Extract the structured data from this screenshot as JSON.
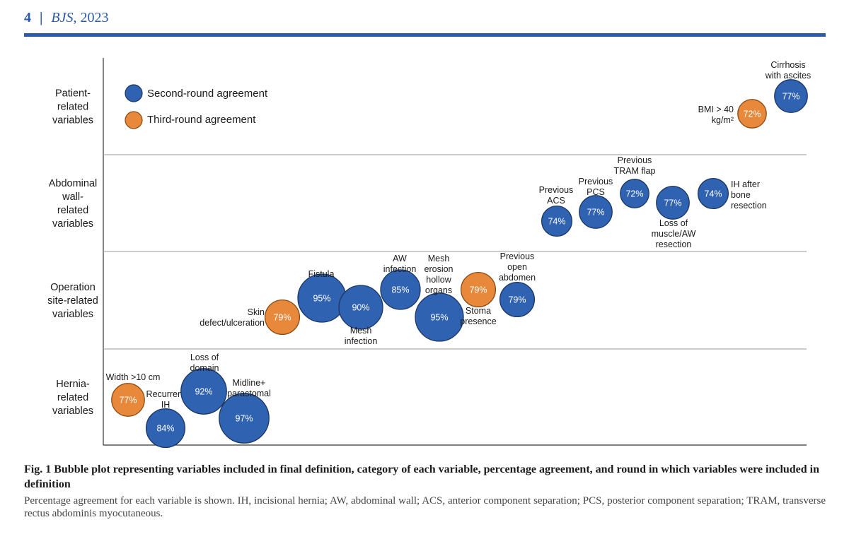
{
  "header": {
    "page": "4",
    "separator": "|",
    "journal": "BJS",
    "year": ", 2023"
  },
  "colors": {
    "second": "#2f62b0",
    "third": "#e8883a",
    "rule": "#2a5aa8"
  },
  "legend": {
    "second_label": "Second-round agreement",
    "third_label": "Third-round agreement"
  },
  "rows": [
    {
      "label": [
        "Patient-",
        "related",
        "variables"
      ]
    },
    {
      "label": [
        "Abdominal",
        "wall-",
        "related",
        "variables"
      ]
    },
    {
      "label": [
        "Operation",
        "site-related",
        "variables"
      ]
    },
    {
      "label": [
        "Hernia-",
        "related",
        "variables"
      ]
    }
  ],
  "chart_data": {
    "type": "bubble",
    "categories": [
      "Patient-related variables",
      "Abdominal wall-related variables",
      "Operation site-related variables",
      "Hernia-related variables"
    ],
    "series": [
      {
        "name": "Second-round agreement",
        "round": 2
      },
      {
        "name": "Third-round agreement",
        "round": 3
      }
    ],
    "points": [
      {
        "label": [
          "Width >10 cm"
        ],
        "value": "77%",
        "pct": 77,
        "round": 3,
        "row": 3
      },
      {
        "label": [
          "Recurrent",
          "IH"
        ],
        "value": "84%",
        "pct": 84,
        "round": 2,
        "row": 3
      },
      {
        "label": [
          "Loss of",
          "domain"
        ],
        "value": "92%",
        "pct": 92,
        "round": 2,
        "row": 3
      },
      {
        "label": [
          "Midline+",
          "parastomal"
        ],
        "value": "97%",
        "pct": 97,
        "round": 2,
        "row": 3
      },
      {
        "label": [
          "Skin",
          "defect/ulceration"
        ],
        "value": "79%",
        "pct": 79,
        "round": 3,
        "row": 2
      },
      {
        "label": [
          "Fistula"
        ],
        "value": "95%",
        "pct": 95,
        "round": 2,
        "row": 2
      },
      {
        "label": [
          "Mesh",
          "infection"
        ],
        "value": "90%",
        "pct": 90,
        "round": 2,
        "row": 2
      },
      {
        "label": [
          "AW",
          "infection"
        ],
        "value": "85%",
        "pct": 85,
        "round": 2,
        "row": 2
      },
      {
        "label": [
          "Mesh",
          "erosion",
          "hollow",
          "organs"
        ],
        "value": "95%",
        "pct": 95,
        "round": 2,
        "row": 2
      },
      {
        "label": [
          "Stoma",
          "presence"
        ],
        "value": "79%",
        "pct": 79,
        "round": 3,
        "row": 2
      },
      {
        "label": [
          "Previous",
          "open",
          "abdomen"
        ],
        "value": "79%",
        "pct": 79,
        "round": 2,
        "row": 2
      },
      {
        "label": [
          "Previous",
          "ACS"
        ],
        "value": "74%",
        "pct": 74,
        "round": 2,
        "row": 1
      },
      {
        "label": [
          "Previous",
          "PCS"
        ],
        "value": "77%",
        "pct": 77,
        "round": 2,
        "row": 1
      },
      {
        "label": [
          "Previous",
          "TRAM flap"
        ],
        "value": "72%",
        "pct": 72,
        "round": 2,
        "row": 1
      },
      {
        "label": [
          "Loss of",
          "muscle/AW",
          "resection"
        ],
        "value": "77%",
        "pct": 77,
        "round": 2,
        "row": 1
      },
      {
        "label": [
          "IH after",
          "bone",
          "resection"
        ],
        "value": "74%",
        "pct": 74,
        "round": 2,
        "row": 1
      },
      {
        "label": [
          "BMI > 40",
          "kg/m²"
        ],
        "value": "72%",
        "pct": 72,
        "round": 3,
        "row": 0
      },
      {
        "label": [
          "Cirrhosis",
          "with ascites"
        ],
        "value": "77%",
        "pct": 77,
        "round": 2,
        "row": 0
      }
    ]
  },
  "caption": {
    "title": "Fig. 1 Bubble plot representing variables included in final definition, category of each variable, percentage agreement, and round in which variables were included in definition",
    "note": "Percentage agreement for each variable is shown. IH, incisional hernia; AW, abdominal wall; ACS, anterior component separation; PCS, posterior component separation; TRAM, transverse rectus abdominis myocutaneous."
  }
}
